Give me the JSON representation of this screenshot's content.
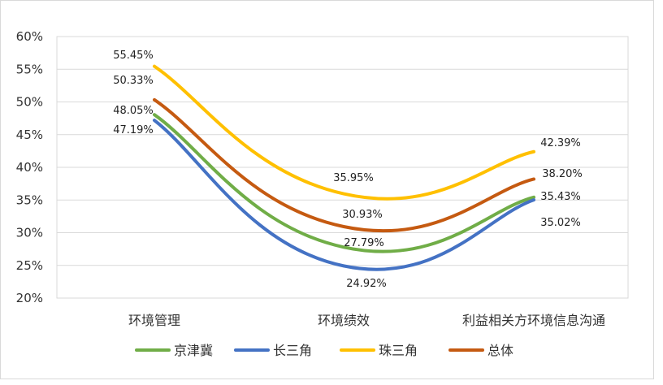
{
  "chart_data": {
    "type": "line",
    "title": "",
    "xlabel": "",
    "ylabel": "",
    "categories": [
      "环境管理",
      "环境绩效",
      "利益相关方环境信息沟通"
    ],
    "ylim": [
      20,
      60
    ],
    "y_ticks": [
      "20%",
      "25%",
      "30%",
      "35%",
      "40%",
      "45%",
      "50%",
      "55%",
      "60%"
    ],
    "smooth": true,
    "grid": true,
    "legend_position": "bottom",
    "series": [
      {
        "name": "京津冀",
        "color": "#70AD47",
        "values": [
          48.05,
          27.79,
          35.43
        ],
        "labels": [
          "48.05%",
          "27.79%",
          "35.43%"
        ]
      },
      {
        "name": "长三角",
        "color": "#4472C4",
        "values": [
          47.19,
          24.92,
          35.02
        ],
        "labels": [
          "47.19%",
          "24.92%",
          "35.02%"
        ]
      },
      {
        "name": "珠三角",
        "color": "#FFC000",
        "values": [
          55.45,
          35.95,
          42.39
        ],
        "labels": [
          "55.45%",
          "35.95%",
          "42.39%"
        ]
      },
      {
        "name": "总体",
        "color": "#C55A11",
        "values": [
          50.33,
          30.93,
          38.2
        ],
        "labels": [
          "50.33%",
          "30.93%",
          "38.20%"
        ]
      }
    ]
  }
}
